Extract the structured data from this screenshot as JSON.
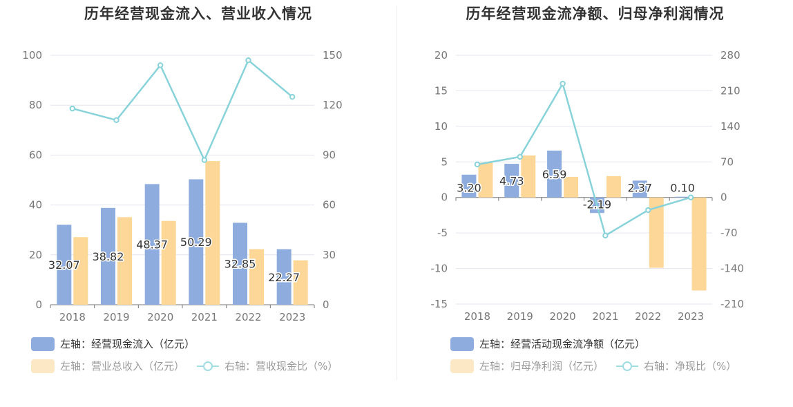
{
  "colors": {
    "bar_primary": "#8eadde",
    "bar_secondary": "#fdd798",
    "line": "#88d3d9",
    "legend_primary": "#8eadde",
    "legend_secondary": "#fde8c6",
    "legend_line": "#9fdde3",
    "grid": "#e3e6f0",
    "axis_text": "#777777",
    "legend_text_active": "#333333",
    "legend_text_inactive": "#999999"
  },
  "left_chart": {
    "title": "历年经营现金流入、营业收入情况",
    "legend": {
      "primary": "左轴：经营现金流入（亿元）",
      "secondary": "左轴：营业总收入（亿元）",
      "line": "右轴：营收现金比（%）"
    }
  },
  "right_chart": {
    "title": "历年经营现金流净额、归母净利润情况",
    "legend": {
      "primary": "左轴：经营活动现金流净额（亿元）",
      "secondary": "左轴：归母净利润（亿元）",
      "line": "右轴：净现比（%）"
    }
  },
  "chart_data": [
    {
      "type": "bar",
      "title": "历年经营现金流入、营业收入情况",
      "categories": [
        "2018",
        "2019",
        "2020",
        "2021",
        "2022",
        "2023"
      ],
      "y_left": {
        "range": [
          0,
          100
        ],
        "ticks": [
          "0",
          "20",
          "40",
          "60",
          "80",
          "100"
        ]
      },
      "y_right": {
        "range": [
          0,
          150
        ],
        "ticks": [
          "0",
          "30",
          "60",
          "90",
          "120",
          "150"
        ]
      },
      "series": [
        {
          "name": "左轴：经营现金流入（亿元）",
          "type": "bar",
          "axis": "left",
          "values": [
            32.07,
            38.82,
            48.37,
            50.29,
            32.85,
            22.27
          ],
          "labels": [
            "32.07",
            "38.82",
            "48.37",
            "50.29",
            "32.85",
            "22.27"
          ]
        },
        {
          "name": "左轴：营业总收入（亿元）",
          "type": "bar",
          "axis": "left",
          "values": [
            27.1,
            35.1,
            33.6,
            57.6,
            22.3,
            17.8
          ]
        },
        {
          "name": "右轴：营收现金比（%）",
          "type": "line",
          "axis": "right",
          "values": [
            118,
            111,
            144,
            87,
            147,
            125
          ]
        }
      ],
      "grid": true,
      "legend_position": "bottom-left"
    },
    {
      "type": "bar",
      "title": "历年经营现金流净额、归母净利润情况",
      "categories": [
        "2018",
        "2019",
        "2020",
        "2021",
        "2022",
        "2023"
      ],
      "y_left": {
        "range": [
          -15,
          20
        ],
        "ticks": [
          "-15",
          "-10",
          "-5",
          "0",
          "5",
          "10",
          "15",
          "20"
        ]
      },
      "y_right": {
        "range": [
          -210,
          280
        ],
        "ticks": [
          "-210",
          "-140",
          "-70",
          "0",
          "70",
          "140",
          "210",
          "280"
        ]
      },
      "series": [
        {
          "name": "左轴：经营活动现金流净额（亿元）",
          "type": "bar",
          "axis": "left",
          "values": [
            3.2,
            4.73,
            6.59,
            -2.19,
            2.37,
            0.1
          ],
          "labels": [
            "3.20",
            "4.73",
            "6.59",
            "-2.19",
            "2.37",
            "0.10"
          ]
        },
        {
          "name": "左轴：归母净利润（亿元）",
          "type": "bar",
          "axis": "left",
          "values": [
            4.9,
            5.9,
            2.9,
            3.0,
            -9.9,
            -13.1
          ]
        },
        {
          "name": "右轴：净现比（%）",
          "type": "line",
          "axis": "right",
          "values": [
            65,
            80,
            224,
            -75,
            -25,
            0
          ]
        }
      ],
      "grid": true,
      "legend_position": "bottom-left"
    }
  ]
}
